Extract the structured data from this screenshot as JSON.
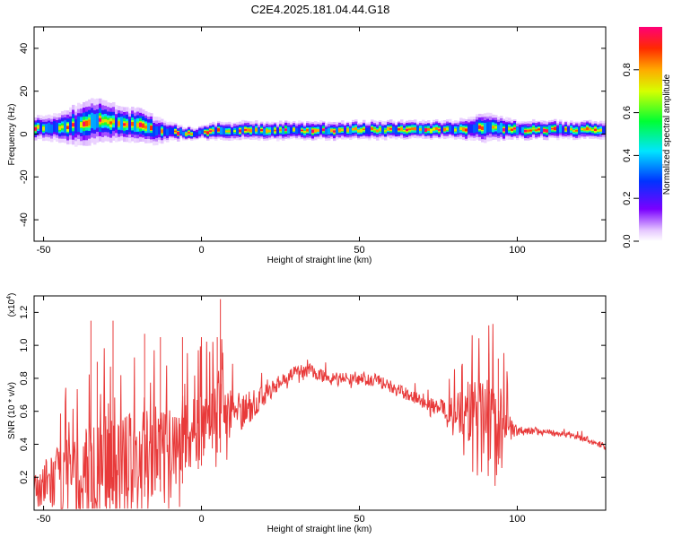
{
  "title": "C2E4.2025.181.04.44.G18",
  "chart_data": [
    {
      "type": "heatmap",
      "xlabel": "Height of straight line (km)",
      "ylabel": "Frequency (Hz)",
      "xlim": [
        -53,
        128
      ],
      "ylim": [
        -50,
        50
      ],
      "xticks": [
        -50,
        0,
        50,
        100
      ],
      "yticks": [
        -40,
        -20,
        0,
        20,
        40
      ],
      "colorbar": {
        "label": "Normalized spectral amplitude",
        "range": [
          0.0,
          1.0
        ],
        "ticks": [
          "0.0",
          "0.2",
          "0.4",
          "0.6",
          "0.8"
        ],
        "tick_values": [
          0.0,
          0.2,
          0.4,
          0.6,
          0.8
        ]
      },
      "ridge": {
        "x": [
          -53,
          -50,
          -45,
          -40,
          -35,
          -30,
          -25,
          -20,
          -15,
          -10,
          -5,
          0,
          5,
          10,
          20,
          30,
          40,
          50,
          60,
          70,
          75,
          80,
          85,
          90,
          95,
          100,
          105,
          110,
          115,
          120,
          128
        ],
        "freq": [
          3,
          3,
          3,
          4,
          6,
          6,
          5,
          4,
          2,
          1,
          0.5,
          0.5,
          1.5,
          1.5,
          1.5,
          1.5,
          1.5,
          2,
          2,
          2,
          2,
          2,
          2.5,
          3,
          2.5,
          2,
          2,
          2,
          2,
          2,
          2
        ],
        "spread": [
          4,
          4,
          5,
          7,
          8,
          7,
          6,
          6,
          5,
          3,
          2,
          2,
          3,
          3,
          3,
          3,
          3,
          3,
          3,
          3,
          3,
          3,
          4,
          5,
          4,
          3,
          3,
          3,
          3,
          3,
          3
        ]
      }
    },
    {
      "type": "line",
      "xlabel": "Height of straight line (km)",
      "ylabel": "SNR (10 * v/v)",
      "yunit": "(x10^4)",
      "xlim": [
        -53,
        128
      ],
      "ylim": [
        0,
        1.3
      ],
      "xticks": [
        -50,
        0,
        50,
        100
      ],
      "yticks": [
        "0.2",
        "0.4",
        "0.6",
        "0.8",
        "1.0",
        "1.2"
      ],
      "ytick_values": [
        0.2,
        0.4,
        0.6,
        0.8,
        1.0,
        1.2
      ],
      "color": "#e83a3a",
      "x": [
        -53,
        -50,
        -45,
        -40,
        -35,
        -30,
        -25,
        -20,
        -15,
        -10,
        -5,
        0,
        5,
        10,
        15,
        20,
        25,
        30,
        35,
        40,
        45,
        50,
        55,
        60,
        65,
        70,
        75,
        80,
        85,
        90,
        95,
        98,
        100,
        105,
        110,
        115,
        120,
        125,
        128
      ],
      "y": [
        0.12,
        0.15,
        0.18,
        0.22,
        0.25,
        0.28,
        0.3,
        0.32,
        0.35,
        0.38,
        0.42,
        0.52,
        0.6,
        0.6,
        0.62,
        0.7,
        0.78,
        0.84,
        0.85,
        0.8,
        0.8,
        0.8,
        0.79,
        0.75,
        0.7,
        0.66,
        0.62,
        0.6,
        0.6,
        0.56,
        0.52,
        0.5,
        0.48,
        0.48,
        0.47,
        0.46,
        0.44,
        0.41,
        0.38
      ],
      "noise": [
        0.08,
        0.15,
        0.22,
        0.25,
        0.3,
        0.3,
        0.3,
        0.28,
        0.28,
        0.25,
        0.22,
        0.22,
        0.2,
        0.15,
        0.1,
        0.06,
        0.05,
        0.04,
        0.04,
        0.04,
        0.04,
        0.04,
        0.04,
        0.04,
        0.04,
        0.04,
        0.05,
        0.1,
        0.2,
        0.25,
        0.22,
        0.08,
        0.03,
        0.02,
        0.02,
        0.02,
        0.02,
        0.02,
        0.02
      ],
      "spikes": [
        {
          "x": -35,
          "y": 1.15
        },
        {
          "x": -33,
          "y": 0.9
        },
        {
          "x": -28,
          "y": 1.15
        },
        {
          "x": -18,
          "y": 1.07
        },
        {
          "x": -13,
          "y": 1.05
        },
        {
          "x": -6,
          "y": 1.05
        },
        {
          "x": -1,
          "y": 0.95
        },
        {
          "x": 6,
          "y": 1.28
        },
        {
          "x": 5,
          "y": 1.05
        },
        {
          "x": 0,
          "y": 0.7
        },
        {
          "x": 94,
          "y": 0.92
        },
        {
          "x": 91,
          "y": 0.95
        }
      ]
    }
  ]
}
